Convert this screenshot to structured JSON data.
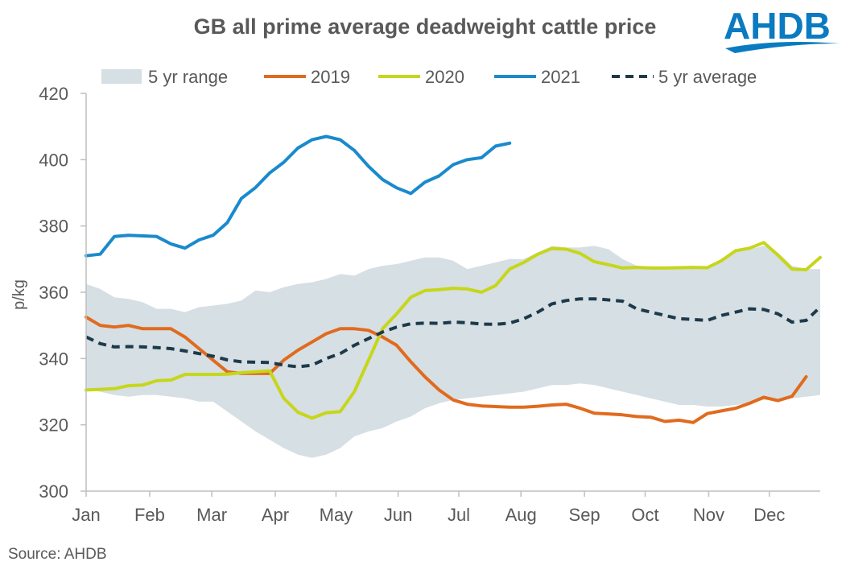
{
  "logo": {
    "text": "AHDB",
    "color": "#0a7bc1"
  },
  "source": "Source: AHDB",
  "chart_data": {
    "type": "line",
    "title": "GB all prime average deadweight cattle price",
    "xlabel": "",
    "ylabel": "p/kg",
    "ylim": [
      300,
      420
    ],
    "yticks": [
      300,
      320,
      340,
      360,
      380,
      400,
      420
    ],
    "xlim": [
      1,
      53
    ],
    "x_ticks": [
      {
        "label": "Jan",
        "week": 1
      },
      {
        "label": "Feb",
        "week": 5.5
      },
      {
        "label": "Mar",
        "week": 9.9
      },
      {
        "label": "Apr",
        "week": 14.4
      },
      {
        "label": "May",
        "week": 18.7
      },
      {
        "label": "Jun",
        "week": 23.1
      },
      {
        "label": "Jul",
        "week": 27.4
      },
      {
        "label": "Aug",
        "week": 31.8
      },
      {
        "label": "Sep",
        "week": 36.3
      },
      {
        "label": "Oct",
        "week": 40.6
      },
      {
        "label": "Nov",
        "week": 45.1
      },
      {
        "label": "Dec",
        "week": 49.4
      }
    ],
    "grid": false,
    "legend_position": "top",
    "weeks": [
      1,
      2,
      3,
      4,
      5,
      6,
      7,
      8,
      9,
      10,
      11,
      12,
      13,
      14,
      15,
      16,
      17,
      18,
      19,
      20,
      21,
      22,
      23,
      24,
      25,
      26,
      27,
      28,
      29,
      30,
      31,
      32,
      33,
      34,
      35,
      36,
      37,
      38,
      39,
      40,
      41,
      42,
      43,
      44,
      45,
      46,
      47,
      48,
      49,
      50,
      51,
      52,
      53
    ],
    "range": {
      "name": "5 yr range",
      "color": "#d6dfe4",
      "upper": [
        362.5,
        361,
        358.5,
        358,
        357,
        355,
        355,
        354,
        355.5,
        356,
        356.5,
        357.5,
        360.5,
        360,
        361.5,
        362.5,
        363,
        364,
        365.5,
        365,
        367,
        368,
        368.5,
        369.5,
        370.5,
        370.5,
        369.5,
        367,
        368,
        369,
        370,
        370,
        372,
        374,
        373.5,
        373.5,
        374,
        373,
        370,
        368,
        367.5,
        367.5,
        367,
        367.5,
        367.5,
        369,
        372,
        373,
        374,
        372,
        368,
        367,
        367
      ],
      "lower": [
        330.5,
        330,
        329,
        328.5,
        329,
        329,
        328.5,
        328,
        327,
        327,
        324,
        321,
        318,
        315.5,
        313,
        311,
        310,
        311,
        313,
        316.5,
        318,
        319,
        321,
        322.5,
        325,
        326.5,
        327.5,
        328,
        328.5,
        329,
        329.5,
        330,
        331,
        332,
        332,
        332.5,
        332,
        331,
        330,
        329,
        328,
        327,
        326,
        326,
        325.5,
        325.5,
        326,
        326.5,
        327.5,
        327.5,
        328,
        328.5,
        329
      ]
    },
    "series": [
      {
        "name": "2019",
        "color": "#e06b1e",
        "dash": false,
        "values": [
          352.5,
          350,
          349.5,
          350,
          349,
          349,
          349,
          346.5,
          343,
          339.5,
          336,
          335.5,
          335.5,
          335.5,
          339.5,
          342.5,
          345,
          347.5,
          349,
          349,
          348.5,
          346.5,
          344,
          339,
          334.5,
          330.5,
          327.5,
          326.2,
          325.7,
          325.5,
          325.3,
          325.3,
          325.6,
          326,
          326.2,
          325,
          323.5,
          323.3,
          323,
          322.5,
          322.3,
          321,
          321.4,
          320.7,
          323.4,
          324.2,
          325,
          326.5,
          328.3,
          327.3,
          328.6,
          334.5,
          null
        ]
      },
      {
        "name": "2020",
        "color": "#c6d61a",
        "dash": false,
        "values": [
          330.5,
          330.7,
          330.9,
          331.8,
          332,
          333.3,
          333.5,
          335.2,
          335.2,
          335.2,
          335.3,
          335.7,
          336,
          336.3,
          328,
          323.8,
          322,
          323.6,
          324,
          330,
          339.5,
          349,
          353.5,
          358.5,
          360.5,
          360.8,
          361.2,
          361,
          360,
          362,
          367,
          369,
          371.5,
          373.2,
          373,
          371.7,
          369.2,
          368.3,
          367.3,
          367.5,
          367.3,
          367.3,
          367.4,
          367.5,
          367.4,
          369.5,
          372.5,
          373.3,
          375,
          371.2,
          367,
          366.8,
          370.5
        ]
      },
      {
        "name": "2021",
        "color": "#1a8acd",
        "dash": false,
        "values": [
          371,
          371.5,
          376.8,
          377.2,
          377,
          376.8,
          374.6,
          373.3,
          375.8,
          377.2,
          381,
          388.3,
          391.6,
          396,
          399.2,
          403.5,
          406,
          407,
          406,
          402.8,
          398,
          394,
          391.5,
          389.8,
          393.2,
          395.1,
          398.5,
          400,
          400.6,
          404.1,
          405,
          null,
          null,
          null,
          null,
          null,
          null,
          null,
          null,
          null,
          null,
          null,
          null,
          null,
          null,
          null,
          null,
          null,
          null,
          null,
          null,
          null,
          null
        ]
      },
      {
        "name": "5 yr average",
        "color": "#1d3a4a",
        "dash": true,
        "values": [
          346.5,
          344.5,
          343.5,
          343.6,
          343.5,
          343.3,
          343,
          342.3,
          341.5,
          340.7,
          339.6,
          339,
          338.9,
          338.8,
          338,
          337.5,
          338,
          340,
          341.5,
          344,
          346,
          348,
          349.5,
          350.5,
          350.7,
          350.6,
          351,
          350.8,
          350.4,
          350.3,
          350.7,
          352,
          354,
          356.5,
          357.5,
          358,
          358,
          357.7,
          357.3,
          355,
          354,
          353,
          352,
          351.8,
          351.5,
          353,
          354,
          355,
          354.8,
          353.5,
          351,
          351.5,
          355.5
        ]
      }
    ]
  }
}
